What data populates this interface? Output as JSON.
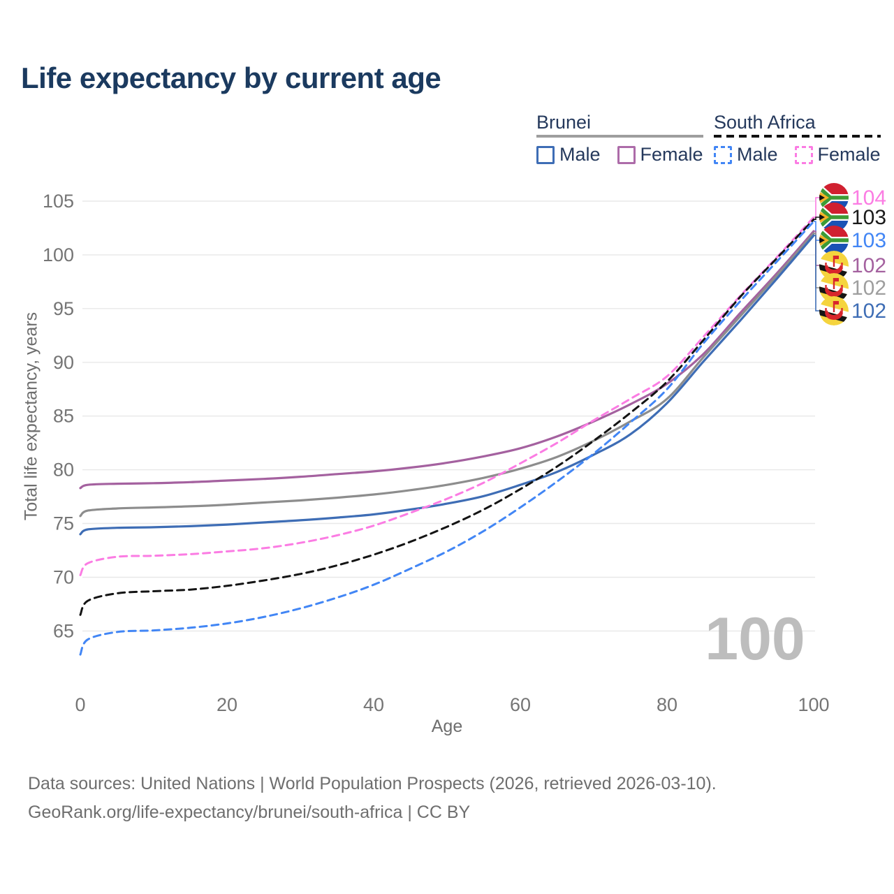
{
  "title": "Life expectancy by current age",
  "watermark": "100",
  "legend": {
    "groups": [
      {
        "name": "Brunei",
        "line_style": "solid",
        "underline_color": "#9e9e9e",
        "items": [
          {
            "label": "Male",
            "color": "#3e6db5",
            "dashed": false
          },
          {
            "label": "Female",
            "color": "#ad6ca9",
            "dashed": false
          }
        ]
      },
      {
        "name": "South Africa",
        "line_style": "dashed",
        "underline_color": "#111111",
        "items": [
          {
            "label": "Male",
            "color": "#4286f5",
            "dashed": true
          },
          {
            "label": "Female",
            "color": "#fb7ce3",
            "dashed": true
          }
        ]
      }
    ]
  },
  "footer": {
    "line1": "Data sources: United Nations | World Population Prospects (2026, retrieved 2026-03-10).",
    "line2": "GeoRank.org/life-expectancy/brunei/south-africa | CC BY"
  },
  "end_labels": [
    {
      "value": "104",
      "color": "#fb7ce3",
      "flag": "south-africa",
      "series_index": 3
    },
    {
      "value": "103",
      "color": "#1a1a1a",
      "flag": "south-africa",
      "series_index": 4
    },
    {
      "value": "103",
      "color": "#4286f5",
      "flag": "south-africa",
      "series_index": 5
    },
    {
      "value": "102",
      "color": "#a4619f",
      "flag": "brunei",
      "series_index": 0
    },
    {
      "value": "102",
      "color": "#9e9e9e",
      "flag": "brunei",
      "series_index": 1
    },
    {
      "value": "102",
      "color": "#3e6db5",
      "flag": "brunei",
      "series_index": 2
    }
  ],
  "chart_data": {
    "type": "line",
    "title": "Life expectancy by current age",
    "xlabel": "Age",
    "ylabel": "Total life expectancy, years",
    "x_ticks": [
      0,
      20,
      40,
      60,
      80,
      100
    ],
    "y_ticks": [
      65,
      70,
      75,
      80,
      85,
      90,
      95,
      100,
      105
    ],
    "xlim": [
      0,
      100
    ],
    "ylim": [
      63,
      105
    ],
    "grid": "horizontal",
    "legend_position": "top-right",
    "x": [
      0,
      1,
      5,
      10,
      15,
      20,
      25,
      30,
      35,
      40,
      45,
      50,
      55,
      60,
      65,
      70,
      75,
      80,
      85,
      90,
      95,
      100
    ],
    "series": [
      {
        "name": "Brunei Female",
        "country": "Brunei",
        "sex": "Female",
        "color": "#a4619f",
        "dashed": false,
        "values": [
          78.3,
          78.6,
          78.7,
          78.75,
          78.85,
          79.0,
          79.15,
          79.35,
          79.6,
          79.85,
          80.2,
          80.65,
          81.25,
          82.0,
          83.1,
          84.5,
          86.1,
          88.0,
          90.8,
          94.6,
          98.3,
          102.2
        ]
      },
      {
        "name": "Brunei Total",
        "country": "Brunei",
        "sex": "Both",
        "color": "#8d8d8d",
        "dashed": false,
        "values": [
          75.7,
          76.2,
          76.4,
          76.5,
          76.6,
          76.75,
          76.95,
          77.15,
          77.4,
          77.7,
          78.1,
          78.6,
          79.25,
          80.1,
          81.2,
          82.7,
          84.5,
          86.6,
          90.5,
          94.3,
          98.1,
          102.0
        ]
      },
      {
        "name": "Brunei Male",
        "country": "Brunei",
        "sex": "Male",
        "color": "#3e6db5",
        "dashed": false,
        "values": [
          74.0,
          74.45,
          74.6,
          74.65,
          74.75,
          74.9,
          75.1,
          75.3,
          75.55,
          75.85,
          76.3,
          76.85,
          77.55,
          78.6,
          79.8,
          81.4,
          83.3,
          86.2,
          90.1,
          93.9,
          97.8,
          101.8
        ]
      },
      {
        "name": "South Africa Female",
        "country": "South Africa",
        "sex": "Female",
        "color": "#fb7ce3",
        "dashed": true,
        "values": [
          70.2,
          71.3,
          71.9,
          72.0,
          72.15,
          72.4,
          72.7,
          73.2,
          73.9,
          74.8,
          76.0,
          77.3,
          78.8,
          80.6,
          82.5,
          84.6,
          86.6,
          88.7,
          92.4,
          96.2,
          99.8,
          103.5
        ]
      },
      {
        "name": "South Africa Total",
        "country": "South Africa",
        "sex": "Both",
        "color": "#141414",
        "dashed": true,
        "values": [
          66.5,
          67.8,
          68.5,
          68.7,
          68.85,
          69.2,
          69.7,
          70.3,
          71.1,
          72.1,
          73.3,
          74.7,
          76.3,
          78.2,
          80.3,
          82.7,
          85.3,
          88.2,
          92.1,
          96.1,
          99.7,
          103.3
        ]
      },
      {
        "name": "South Africa Male",
        "country": "South Africa",
        "sex": "Male",
        "color": "#4286f5",
        "dashed": true,
        "values": [
          62.8,
          64.2,
          64.9,
          65.05,
          65.3,
          65.7,
          66.3,
          67.1,
          68.1,
          69.3,
          70.8,
          72.4,
          74.3,
          76.5,
          78.9,
          81.5,
          84.4,
          87.5,
          91.8,
          95.7,
          99.4,
          103.1
        ]
      }
    ]
  }
}
